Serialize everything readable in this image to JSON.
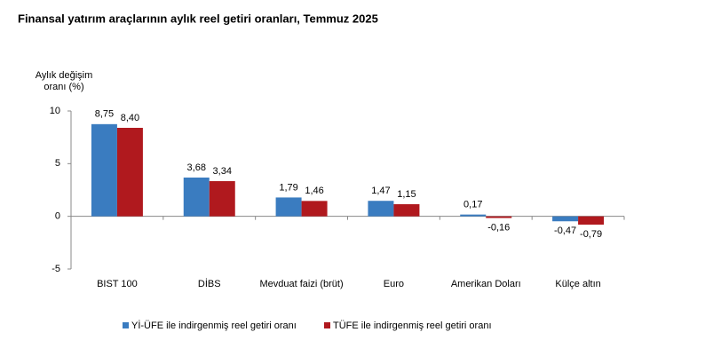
{
  "chart_data": {
    "type": "bar",
    "title": "Finansal yatırım araçlarının aylık reel getiri oranları, Temmuz 2025",
    "ylabel": [
      "Aylık değişim",
      "oranı (%)"
    ],
    "categories": [
      "BIST 100",
      "DİBS",
      "Mevduat faizi (brüt)",
      "Euro",
      "Amerikan Doları",
      "Külçe altın"
    ],
    "series": [
      {
        "name": "Yİ-ÜFE ile indirgenmiş reel getiri oranı",
        "color": "#3a7cc0",
        "values": [
          8.75,
          3.68,
          1.79,
          1.47,
          0.17,
          -0.47
        ],
        "value_labels": [
          "8,75",
          "3,68",
          "1,79",
          "1,47",
          "0,17",
          "-0,47"
        ]
      },
      {
        "name": "TÜFE ile indirgenmiş reel getiri oranı",
        "color": "#b0191e",
        "values": [
          8.4,
          3.34,
          1.46,
          1.15,
          -0.16,
          -0.79
        ],
        "value_labels": [
          "8,40",
          "3,34",
          "1,46",
          "1,15",
          "-0,16",
          "-0,79"
        ]
      }
    ],
    "ylim": [
      -5,
      10
    ],
    "yticks": [
      -5,
      0,
      5,
      10
    ],
    "grid": false,
    "legend": "bottom"
  }
}
